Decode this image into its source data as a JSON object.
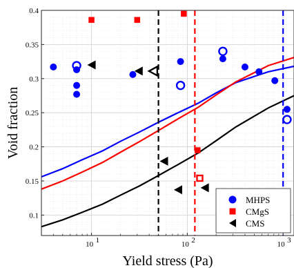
{
  "chart_data": {
    "type": "scatter",
    "xlabel": "Yield stress (Pa)",
    "ylabel": "Void fraction",
    "xscale": "log",
    "xlim": [
      3,
      1300
    ],
    "ylim": [
      0.07,
      0.4
    ],
    "grid": true,
    "legend_position": "bottom-right",
    "x_ticks": [
      {
        "value": 10,
        "base": "10",
        "exp": "1"
      },
      {
        "value": 100,
        "base": "10",
        "exp": "2"
      },
      {
        "value": 1000,
        "base": "10",
        "exp": "3"
      }
    ],
    "y_ticks": [
      {
        "value": 0.1,
        "label": "0.1"
      },
      {
        "value": 0.15,
        "label": "0.15"
      },
      {
        "value": 0.2,
        "label": "0.2"
      },
      {
        "value": 0.25,
        "label": "0.25"
      },
      {
        "value": 0.3,
        "label": "0.3"
      },
      {
        "value": 0.35,
        "label": "0.35"
      },
      {
        "value": 0.4,
        "label": "0.4"
      }
    ],
    "series": [
      {
        "name": "MHPS",
        "color": "#0000ff",
        "marker": "circle",
        "filled": [
          [
            4,
            0.317
          ],
          [
            7,
            0.313
          ],
          [
            7,
            0.29
          ],
          [
            7,
            0.277
          ],
          [
            27,
            0.306
          ],
          [
            85,
            0.325
          ],
          [
            235,
            0.329
          ],
          [
            400,
            0.317
          ],
          [
            560,
            0.31
          ],
          [
            820,
            0.297
          ],
          [
            1100,
            0.255
          ]
        ],
        "hollow": [
          [
            7,
            0.319
          ],
          [
            85,
            0.29
          ],
          [
            235,
            0.34
          ],
          [
            1100,
            0.24
          ]
        ]
      },
      {
        "name": "CMgS",
        "color": "#ff0000",
        "marker": "square",
        "filled": [
          [
            10,
            0.386
          ],
          [
            30,
            0.386
          ],
          [
            92,
            0.395
          ],
          [
            128,
            0.195
          ]
        ],
        "hollow": [
          [
            135,
            0.154
          ]
        ]
      },
      {
        "name": "CMS",
        "color": "#000000",
        "marker": "triangle-left",
        "filled": [
          [
            10,
            0.32
          ],
          [
            31,
            0.311
          ],
          [
            57,
            0.179
          ],
          [
            80,
            0.137
          ],
          [
            152,
            0.14
          ]
        ],
        "hollow": [
          [
            44,
            0.311
          ]
        ]
      }
    ],
    "curves": [
      {
        "color": "#0000ff",
        "y": [
          0.156,
          0.168,
          0.181,
          0.194,
          0.208,
          0.222,
          0.236,
          0.25,
          0.264,
          0.279,
          0.294,
          0.31,
          0.318
        ]
      },
      {
        "color": "#ff0000",
        "y": [
          0.138,
          0.15,
          0.163,
          0.177,
          0.192,
          0.208,
          0.224,
          0.241,
          0.258,
          0.276,
          0.295,
          0.319,
          0.331
        ]
      },
      {
        "color": "#000000",
        "y": [
          0.083,
          0.093,
          0.104,
          0.116,
          0.129,
          0.143,
          0.158,
          0.174,
          0.191,
          0.209,
          0.229,
          0.257,
          0.275
        ]
      }
    ],
    "curve_x": [
      3,
      5,
      8,
      13,
      20,
      32,
      50,
      80,
      130,
      200,
      320,
      700,
      1300
    ],
    "vlines": [
      {
        "x": 50,
        "color": "#000000"
      },
      {
        "x": 120,
        "color": "#ff0000"
      },
      {
        "x": 1000,
        "color": "#0000ff"
      }
    ]
  }
}
